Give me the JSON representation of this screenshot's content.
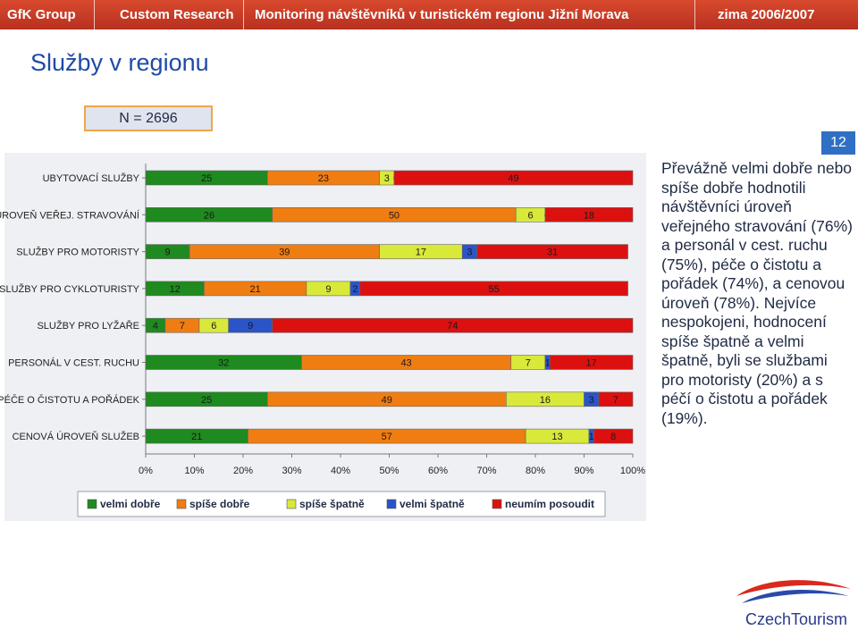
{
  "header": {
    "company": "GfK Group",
    "department": "Custom Research",
    "project": "Monitoring návštěvníků v turistickém regionu Jižní Morava",
    "season": "zima 2006/2007"
  },
  "page_title": "Služby v regionu",
  "sample_size": "N = 2696",
  "page_number": "12",
  "description": "Převážně velmi dobře nebo spíše dobře hodnotili návštěvníci úroveň veřejného stravování (76%) a personál v cest. ruchu (75%), péče o čistotu a pořádek (74%), a cenovou úroveň (78%). Nejvíce nespokojeni, hodnocení spíše špatně a velmi špatně, byli se službami pro motoristy (20%) a s péčí o čistotu a pořádek (19%).",
  "logo_text": "CzechTourism",
  "colors": {
    "header_bg": "#c83a24",
    "title": "#1f4aa8",
    "badge": "#2f6fc4"
  },
  "chart_data": {
    "type": "bar",
    "orientation": "horizontal",
    "stacked": "percent",
    "categories": [
      "UBYTOVACÍ SLUŽBY",
      "ÚROVEŇ VEŘEJ. STRAVOVÁNÍ",
      "SLUŽBY PRO MOTORISTY",
      "SLUŽBY PRO CYKLOTURISTY",
      "SLUŽBY PRO LYŽAŘE",
      "PERSONÁL V CEST. RUCHU",
      "PÉČE O ČISTOTU A POŘÁDEK",
      "CENOVÁ ÚROVEŇ SLUŽEB"
    ],
    "series": [
      {
        "name": "velmi dobře",
        "color": "#1f8a1f",
        "values": [
          25,
          26,
          9,
          12,
          4,
          32,
          25,
          21
        ]
      },
      {
        "name": "spíše dobře",
        "color": "#f07d12",
        "values": [
          23,
          50,
          39,
          21,
          7,
          43,
          49,
          57
        ]
      },
      {
        "name": "spíše špatně",
        "color": "#d8e93a",
        "values": [
          3,
          6,
          17,
          9,
          6,
          7,
          16,
          13
        ]
      },
      {
        "name": "velmi špatně",
        "color": "#2a55c8",
        "values": [
          0,
          0,
          3,
          2,
          9,
          1,
          3,
          1
        ]
      },
      {
        "name": "neumím posoudit",
        "color": "#dd1010",
        "values": [
          49,
          18,
          31,
          55,
          74,
          17,
          7,
          8
        ]
      }
    ],
    "labels": [
      [
        "25",
        "23",
        "3",
        "0",
        "49"
      ],
      [
        "26",
        "50",
        "6",
        "0",
        "18"
      ],
      [
        "9",
        "39",
        "17",
        "3",
        "31"
      ],
      [
        "12",
        "21",
        "9",
        "2",
        "55"
      ],
      [
        "4",
        "7",
        "6",
        "9",
        "74"
      ],
      [
        "32",
        "43",
        "7",
        "1",
        "17"
      ],
      [
        "25",
        "49",
        "16",
        "3",
        "7"
      ],
      [
        "21",
        "57",
        "13",
        "1",
        "8"
      ]
    ],
    "xlim": [
      0,
      100
    ],
    "xticks": [
      "0%",
      "10%",
      "20%",
      "30%",
      "40%",
      "50%",
      "60%",
      "70%",
      "80%",
      "90%",
      "100%"
    ],
    "legend": "bottom"
  }
}
